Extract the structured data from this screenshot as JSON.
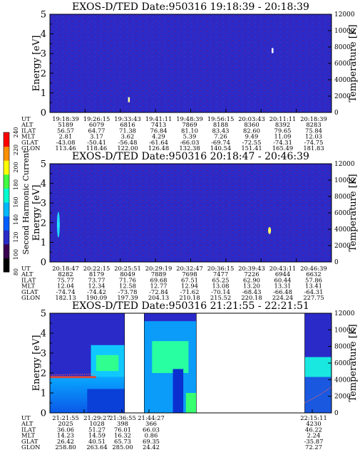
{
  "chart_data": [
    {
      "type": "heatmap",
      "title": "EXOS-D/TED   Date:950316   19:18:39 - 20:18:39",
      "ylabel": "Energy [eV]",
      "y2label": "Temperature [K]",
      "ylim": [
        0,
        5
      ],
      "y2lim": [
        0,
        12000
      ],
      "yticks": [
        "0",
        "1",
        "2",
        "3",
        "4",
        "5"
      ],
      "y2ticks": [
        "0",
        "2000",
        "4000",
        "6000",
        "8000",
        "10000",
        "12000"
      ],
      "background_color": "#2a2ac8",
      "spots": [
        {
          "t": 0.28,
          "e": 0.65,
          "color": "#ffffaa"
        },
        {
          "t": 0.79,
          "e": 3.15,
          "color": "#ffffff"
        }
      ],
      "ephemeris": {
        "labels": [
          "UT",
          "ALT",
          "ILAT",
          "MLT",
          "GLAT",
          "GLON"
        ],
        "columns": [
          [
            "19:18:39",
            "5189",
            "56.57",
            "2.81",
            "-43.08",
            "113.46"
          ],
          [
            "19:26:15",
            "6079",
            "64.77",
            "3.17",
            "-50.41",
            "118.46"
          ],
          [
            "19:33:43",
            "6816",
            "71.38",
            "3.62",
            "-56.48",
            "122.00"
          ],
          [
            "19:41:11",
            "7413",
            "76.84",
            "4.29",
            "-61.64",
            "126.48"
          ],
          [
            "19:48:39",
            "7869",
            "81.10",
            "5.39",
            "-66.03",
            "132.38"
          ],
          [
            "19:56:15",
            "8188",
            "83.43",
            "7.26",
            "-69.74",
            "140.54"
          ],
          [
            "20:03:43",
            "8360",
            "82.60",
            "9.49",
            "-72.55",
            "151.41"
          ],
          [
            "20:11:11",
            "8392",
            "79.65",
            "11.09",
            "-74.31",
            "165.49"
          ],
          [
            "20:18:39",
            "8283",
            "75.84",
            "12.03",
            "-74.75",
            "181.83"
          ]
        ]
      }
    },
    {
      "type": "heatmap",
      "title": "EXOS-D/TED   Date:950316   20:18:47 - 20:46:39",
      "ylabel": "Energy [eV]",
      "y2label": "Temperature [K]",
      "ylim": [
        0,
        5
      ],
      "y2lim": [
        0,
        12000
      ],
      "yticks": [
        "0",
        "1",
        "2",
        "3",
        "4",
        "5"
      ],
      "y2ticks": [
        "0",
        "2000",
        "4000",
        "6000",
        "8000",
        "10000",
        "12000"
      ],
      "background_color": "#2a2ac8",
      "spots": [
        {
          "t": 0.03,
          "e": 1.9,
          "color": "#40ffe0"
        },
        {
          "t": 0.78,
          "e": 1.6,
          "color": "#ffff60"
        }
      ],
      "ephemeris": {
        "labels": [
          "UT",
          "ALT",
          "ILAT",
          "MLT",
          "GLAT",
          "GLON"
        ],
        "columns": [
          [
            "20:18:47",
            "8282",
            "75.77",
            "12.04",
            "-74.74",
            "182.13"
          ],
          [
            "20:22:15",
            "8179",
            "73.77",
            "12.34",
            "-74.42",
            "190.09"
          ],
          [
            "20:25:51",
            "8049",
            "71.76",
            "12.58",
            "-73.78",
            "197.39"
          ],
          [
            "20:29:19",
            "7889",
            "69.68",
            "12.77",
            "-72.84",
            "204.13"
          ],
          [
            "20:32:47",
            "7698",
            "67.51",
            "12.94",
            "-71.62",
            "210.18"
          ],
          [
            "20:36:15",
            "7477",
            "65.25",
            "13.08",
            "-70.14",
            "215.52"
          ],
          [
            "20:39:43",
            "7226",
            "62.90",
            "13.20",
            "-68.43",
            "220.18"
          ],
          [
            "20:43:11",
            "6944",
            "60.44",
            "13.31",
            "-66.48",
            "224.24"
          ],
          [
            "20:46:39",
            "6632",
            "57.86",
            "13.41",
            "-64.31",
            "227.75"
          ]
        ]
      }
    },
    {
      "type": "heatmap",
      "title": "EXOS-D/TED   Date:950316   21:21:55 - 22:21:51",
      "ylabel": "Energy [eV]",
      "y2label": "Temperature [K]",
      "ylim": [
        0,
        5
      ],
      "y2lim": [
        0,
        12000
      ],
      "yticks": [
        "0",
        "1",
        "2",
        "3",
        "4",
        "5"
      ],
      "y2ticks": [
        "0",
        "2000",
        "4000",
        "6000",
        "8000",
        "10000",
        "12000"
      ],
      "data_gaps": [
        [
          0.265,
          0.335
        ],
        [
          0.52,
          0.905
        ]
      ],
      "ephemeris": {
        "labels": [
          "UT",
          "ALT",
          "ILAT",
          "MLT",
          "GLAT",
          "GLON"
        ],
        "columns": [
          [
            "21:21:55",
            "2025",
            "36.06",
            "14.23",
            "26.42",
            "258.80"
          ],
          [
            "21:29:27",
            "1028",
            "51.27",
            "14.59",
            "40.51",
            "263.64"
          ],
          [
            "21:36:55",
            "398",
            "76.01",
            "16.32",
            "65.73",
            "285.00"
          ],
          [
            "21:44:27",
            "366",
            "66.03",
            "0.86",
            "69.35",
            "24.42"
          ],
          [
            "22:15:11",
            "4230",
            "46.22",
            "2.24",
            "-35.87",
            "72.27"
          ]
        ]
      }
    }
  ],
  "colorbar": {
    "label": "Second Harmonic Current",
    "ticks": [
      "80",
      "100",
      "120",
      "140",
      "160",
      "180",
      "200",
      "220",
      "240"
    ],
    "colors": [
      "#000000",
      "#3a0050",
      "#2a2ac8",
      "#0060ff",
      "#00b8ff",
      "#00ffd0",
      "#40ff40",
      "#ffff00",
      "#ff9000",
      "#ff0000"
    ]
  }
}
